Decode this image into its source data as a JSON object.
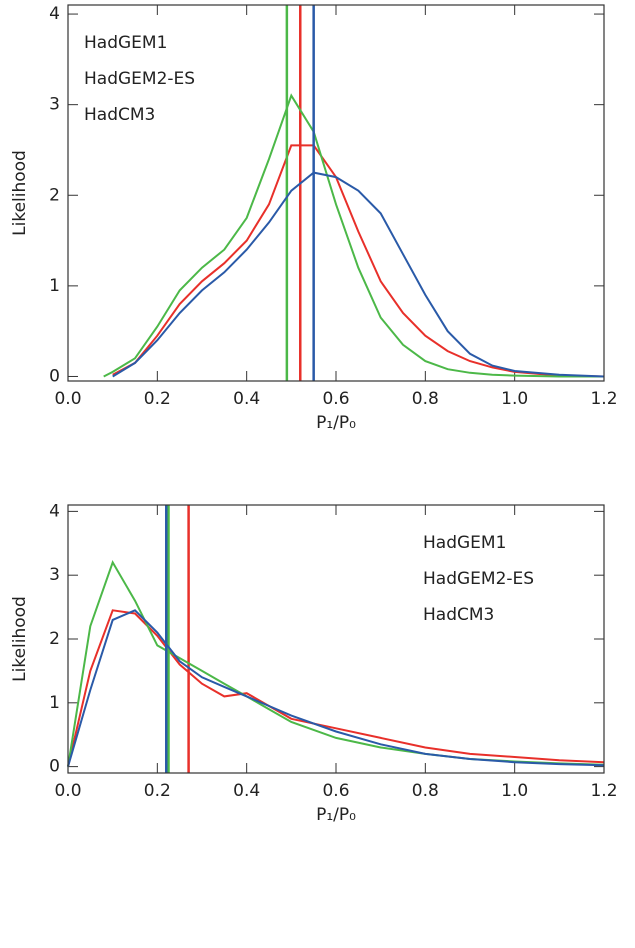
{
  "chart_data": [
    {
      "type": "line",
      "x_label": "P₁/P₀",
      "y_label": "Likelihood",
      "legend": "upper left",
      "x": [
        0.08,
        0.1,
        0.15,
        0.2,
        0.25,
        0.3,
        0.35,
        0.4,
        0.45,
        0.5,
        0.55,
        0.6,
        0.65,
        0.7,
        0.75,
        0.8,
        0.85,
        0.9,
        0.95,
        1.0,
        1.1,
        1.2
      ],
      "series": [
        {
          "name": "HadGEM1",
          "color": "#e8302a",
          "vline": 0.52,
          "values": [
            null,
            0.02,
            0.15,
            0.45,
            0.8,
            1.05,
            1.25,
            1.5,
            1.9,
            2.55,
            2.55,
            2.2,
            1.6,
            1.05,
            0.7,
            0.45,
            0.28,
            0.17,
            0.1,
            0.05,
            0.01,
            0
          ]
        },
        {
          "name": "HadGEM2-ES",
          "color": "#4cb848",
          "vline": 0.49,
          "values": [
            0,
            0.05,
            0.2,
            0.55,
            0.95,
            1.2,
            1.4,
            1.75,
            2.4,
            3.1,
            2.7,
            1.9,
            1.2,
            0.65,
            0.35,
            0.17,
            0.08,
            0.04,
            0.02,
            0.01,
            0,
            0
          ]
        },
        {
          "name": "HadCM3",
          "color": "#2a5aa8",
          "vline": 0.55,
          "values": [
            null,
            0,
            0.15,
            0.4,
            0.7,
            0.95,
            1.15,
            1.4,
            1.7,
            2.05,
            2.25,
            2.2,
            2.05,
            1.8,
            1.35,
            0.9,
            0.5,
            0.25,
            0.12,
            0.06,
            0.02,
            0
          ]
        }
      ],
      "xlim": [
        0,
        1.2
      ],
      "ylim": [
        -0.05,
        4.1
      ],
      "xticks": [
        {
          "value": 0,
          "label": "0.0"
        },
        0.2,
        0.4,
        0.6,
        0.8,
        {
          "value": 1,
          "label": "1.0"
        },
        1.2
      ],
      "yticks": [
        0,
        1,
        2,
        3,
        4
      ]
    },
    {
      "type": "line",
      "x_label": "P₁/P₀",
      "y_label": "Likelihood",
      "legend": "upper right",
      "x": [
        0,
        0.05,
        0.1,
        0.15,
        0.2,
        0.25,
        0.3,
        0.35,
        0.4,
        0.45,
        0.5,
        0.6,
        0.7,
        0.8,
        0.9,
        1.0,
        1.1,
        1.2
      ],
      "series": [
        {
          "name": "HadGEM1",
          "color": "#e8302a",
          "vline": 0.27,
          "values": [
            0,
            1.5,
            2.45,
            2.4,
            2.05,
            1.6,
            1.3,
            1.1,
            1.15,
            0.95,
            0.75,
            0.6,
            0.45,
            0.3,
            0.2,
            0.15,
            0.1,
            0.07
          ]
        },
        {
          "name": "HadGEM2-ES",
          "color": "#4cb848",
          "vline": 0.225,
          "values": [
            0,
            2.2,
            3.2,
            2.6,
            1.9,
            1.7,
            1.5,
            1.3,
            1.1,
            0.9,
            0.7,
            0.45,
            0.3,
            0.2,
            0.12,
            0.08,
            0.05,
            0.03
          ]
        },
        {
          "name": "HadCM3",
          "color": "#2a5aa8",
          "vline": 0.22,
          "values": [
            0,
            1.2,
            2.3,
            2.45,
            2.1,
            1.65,
            1.4,
            1.25,
            1.1,
            0.95,
            0.8,
            0.55,
            0.35,
            0.2,
            0.12,
            0.07,
            0.04,
            0.02
          ]
        }
      ],
      "xlim": [
        0,
        1.2
      ],
      "ylim": [
        -0.1,
        4.1
      ],
      "xticks": [
        {
          "value": 0,
          "label": "0.0"
        },
        0.2,
        0.4,
        0.6,
        0.8,
        {
          "value": 1,
          "label": "1.0"
        },
        1.2
      ],
      "yticks": [
        0,
        1,
        2,
        3,
        4
      ]
    }
  ]
}
